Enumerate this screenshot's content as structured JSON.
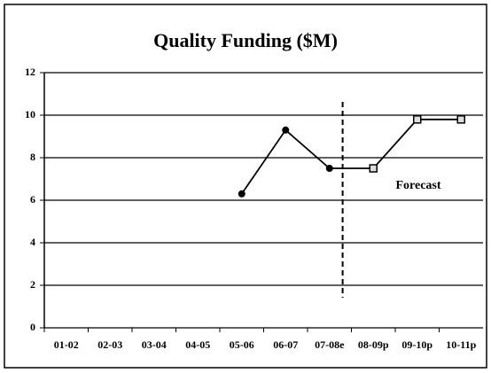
{
  "chart_data": {
    "type": "line",
    "title": "Quality Funding ($M)",
    "categories": [
      "01-02",
      "02-03",
      "03-04",
      "04-05",
      "05-06",
      "06-07",
      "07-08e",
      "08-09p",
      "09-10p",
      "10-11p"
    ],
    "series": [
      {
        "color": "#000000",
        "values": [
          null,
          null,
          null,
          null,
          6.3,
          9.3,
          7.5,
          7.5,
          9.8,
          9.8
        ],
        "markers": [
          null,
          null,
          null,
          null,
          "circle",
          "circle",
          "circle",
          "square",
          "square",
          "square"
        ]
      }
    ],
    "ylim": [
      0,
      12
    ],
    "yticks": [
      0,
      2,
      4,
      6,
      8,
      10,
      12
    ],
    "grid": true,
    "annotation": "Forecast"
  }
}
